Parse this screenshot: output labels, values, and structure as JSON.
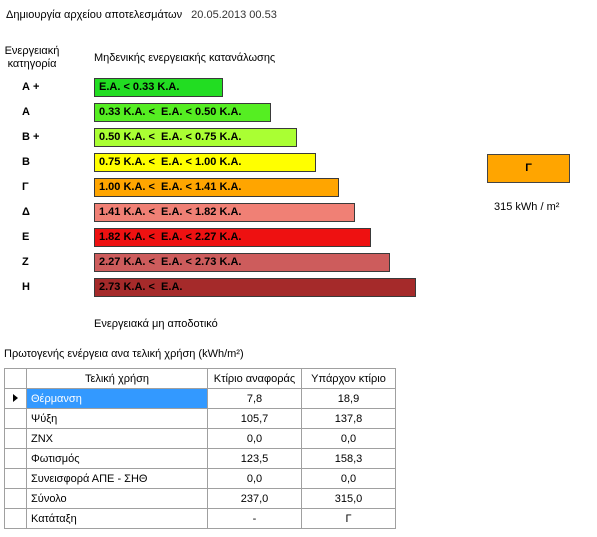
{
  "header": {
    "title": "Δημιουργία αρχείου αποτελεσμάτων",
    "timestamp": "20.05.2013 00.53"
  },
  "scale": {
    "category_header": [
      "Ενεργειακή",
      "κατηγορία"
    ],
    "top_label": "Μηδενικής ενεργειακής κατανάλωσης",
    "bottom_label": "Ενεργειακά μη αποδοτικό",
    "categories": [
      {
        "letter": "Α +",
        "range": "Ε.Α. < 0.33 Κ.Α.",
        "color": "#22dd22",
        "fill": 0.4
      },
      {
        "letter": "Α",
        "range": "0.33 Κ.Α. <  Ε.Α. < 0.50 Κ.Α.",
        "color": "#55ee22",
        "fill": 0.55
      },
      {
        "letter": "Β +",
        "range": "0.50 Κ.Α. <  Ε.Α. < 0.75 Κ.Α.",
        "color": "#aaff33",
        "fill": 0.63
      },
      {
        "letter": "Β",
        "range": "0.75 Κ.Α. <  Ε.Α. < 1.00 Κ.Α.",
        "color": "#ffff00",
        "fill": 0.69
      },
      {
        "letter": "Γ",
        "range": "1.00 Κ.Α. <  Ε.Α. < 1.41 Κ.Α.",
        "color": "#ffa500",
        "fill": 0.76
      },
      {
        "letter": "Δ",
        "range": "1.41 Κ.Α. <  Ε.Α. < 1.82 Κ.Α.",
        "color": "#f08075",
        "fill": 0.81
      },
      {
        "letter": "Ε",
        "range": "1.82 Κ.Α. <  Ε.Α. < 2.27 Κ.Α.",
        "color": "#ee1111",
        "fill": 0.86
      },
      {
        "letter": "Ζ",
        "range": "2.27 Κ.Α. <  Ε.Α. < 2.73 Κ.Α.",
        "color": "#cd5c5c",
        "fill": 0.92
      },
      {
        "letter": "Η",
        "range": "2.73 Κ.Α. <  Ε.Α.",
        "color": "#a52a2a",
        "fill": 1.0
      }
    ]
  },
  "result": {
    "category": "Γ",
    "color": "#ffa500",
    "value": "315 kWh / m²"
  },
  "table": {
    "title": "Πρωτογενής ενέργεια ανα τελική χρήση (kWh/m²)",
    "columns": [
      "Τελική χρήση",
      "Κτίριο αναφοράς",
      "Υπάρχον κτίριο"
    ],
    "rows": [
      {
        "use": "Θέρμανση",
        "reference": "7,8",
        "existing": "18,9"
      },
      {
        "use": "Ψύξη",
        "reference": "105,7",
        "existing": "137,8"
      },
      {
        "use": "ΖΝΧ",
        "reference": "0,0",
        "existing": "0,0"
      },
      {
        "use": "Φωτισμός",
        "reference": "123,5",
        "existing": "158,3"
      },
      {
        "use": "Συνεισφορά ΑΠΕ - ΣΗΘ",
        "reference": "0,0",
        "existing": "0,0"
      },
      {
        "use": "Σύνολο",
        "reference": "237,0",
        "existing": "315,0"
      },
      {
        "use": "Κατάταξη",
        "reference": "-",
        "existing": "Γ"
      }
    ]
  }
}
